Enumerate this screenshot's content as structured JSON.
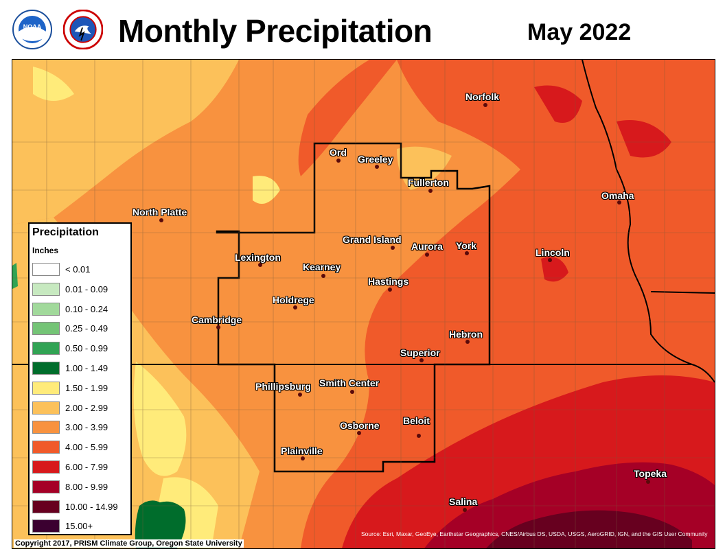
{
  "header": {
    "title": "Monthly Precipitation",
    "date": "May 2022",
    "logos": [
      "noaa-logo",
      "national-weather-service-logo"
    ]
  },
  "legend": {
    "title": "Precipitation",
    "units": "Inches",
    "items": [
      {
        "label": "< 0.01",
        "color": "#ffffff"
      },
      {
        "label": "0.01 - 0.09",
        "color": "#c7e9c0"
      },
      {
        "label": "0.10 - 0.24",
        "color": "#a1d99b"
      },
      {
        "label": "0.25 - 0.49",
        "color": "#74c476"
      },
      {
        "label": "0.50 - 0.99",
        "color": "#31a354"
      },
      {
        "label": "1.00 - 1.49",
        "color": "#006d2c"
      },
      {
        "label": "1.50 - 1.99",
        "color": "#ffeb7a"
      },
      {
        "label": "2.00 - 2.99",
        "color": "#fcc15a"
      },
      {
        "label": "3.00 - 3.99",
        "color": "#f8923f"
      },
      {
        "label": "4.00 - 5.99",
        "color": "#f05a2a"
      },
      {
        "label": "6.00 - 7.99",
        "color": "#d7191c"
      },
      {
        "label": "8.00 - 9.99",
        "color": "#a50026"
      },
      {
        "label": "10.00 - 14.99",
        "color": "#67001f"
      },
      {
        "label": "15.00+",
        "color": "#3b0030"
      }
    ]
  },
  "cities": [
    {
      "name": "Norfolk"
    },
    {
      "name": "Ord"
    },
    {
      "name": "Greeley"
    },
    {
      "name": "Fullerton"
    },
    {
      "name": "Omaha"
    },
    {
      "name": "North Platte"
    },
    {
      "name": "Grand Island"
    },
    {
      "name": "Aurora"
    },
    {
      "name": "York"
    },
    {
      "name": "Lincoln"
    },
    {
      "name": "Lexington"
    },
    {
      "name": "Kearney"
    },
    {
      "name": "Hastings"
    },
    {
      "name": "Holdrege"
    },
    {
      "name": "Cambridge"
    },
    {
      "name": "Hebron"
    },
    {
      "name": "Superior"
    },
    {
      "name": "Phillipsburg"
    },
    {
      "name": "Smith Center"
    },
    {
      "name": "Osborne"
    },
    {
      "name": "Beloit"
    },
    {
      "name": "Plainville"
    },
    {
      "name": "Topeka"
    },
    {
      "name": "Salina"
    }
  ],
  "copyright": "Copyright 2017, PRISM Climate Group, Oregon State University",
  "source": "Source: Esri, Maxar, GeoEye, Earthstar Geographics, CNES/Airbus DS, USDA, USGS, AeroGRID, IGN, and the GIS User Community"
}
